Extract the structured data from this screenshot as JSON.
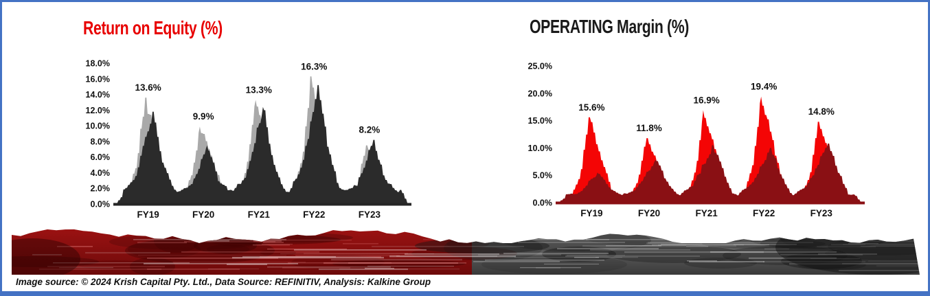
{
  "frame": {
    "border_color": "#4472C4",
    "background": "#FFFFFF"
  },
  "footer": {
    "text": "Image source: © 2024 Krish Capital Pty. Ltd., Data Source: REFINITIV, Analysis: Kalkine Group"
  },
  "banner": {
    "description": "decorative rocky mountain texture strip, dark red left half, gray right half",
    "left_color": "#8A1010",
    "right_color": "#616161"
  },
  "chart_data": [
    {
      "id": "roe",
      "type": "area",
      "title": "Return on Equity (%)",
      "title_color": "#E80000",
      "categories": [
        "FY19",
        "FY20",
        "FY21",
        "FY22",
        "FY23"
      ],
      "point_labels": [
        "13.6%",
        "9.9%",
        "13.3%",
        "16.3%",
        "8.2%"
      ],
      "labeled_values": [
        13.6,
        9.9,
        13.3,
        16.3,
        8.2
      ],
      "ylim": [
        0,
        18
      ],
      "ytick_step": 2,
      "yticks": [
        "0.0%",
        "2.0%",
        "4.0%",
        "6.0%",
        "8.0%",
        "10.0%",
        "12.0%",
        "14.0%",
        "16.0%",
        "18.0%"
      ],
      "grid": false,
      "legend": "none",
      "series": [
        {
          "name": "light-gray-series",
          "color": "#A9A9A9",
          "values": [
            13.6,
            9.9,
            13.3,
            16.3,
            7.5
          ]
        },
        {
          "name": "dark-gray-series",
          "color": "#2B2B2B",
          "values": [
            11.8,
            7.5,
            12.4,
            15.2,
            8.2
          ]
        }
      ]
    },
    {
      "id": "om",
      "type": "area",
      "title": "OPERATING Margin (%)",
      "title_color": "#1A1A1A",
      "categories": [
        "FY19",
        "FY20",
        "FY21",
        "FY22",
        "FY23"
      ],
      "point_labels": [
        "15.6%",
        "11.8%",
        "16.9%",
        "19.4%",
        "14.8%"
      ],
      "labeled_values": [
        15.6,
        11.8,
        16.9,
        19.4,
        14.8
      ],
      "ylim": [
        0,
        25
      ],
      "ytick_step": 5,
      "yticks": [
        "0.0%",
        "5.0%",
        "10.0%",
        "15.0%",
        "20.0%",
        "25.0%"
      ],
      "grid": false,
      "legend": "none",
      "series": [
        {
          "name": "bright-red-series",
          "color": "#F40505",
          "values": [
            15.6,
            11.8,
            16.9,
            19.4,
            14.8
          ]
        },
        {
          "name": "dark-red-series",
          "color": "#8A1014",
          "values": [
            5.5,
            7.8,
            10.5,
            10.0,
            10.8
          ]
        }
      ]
    }
  ]
}
